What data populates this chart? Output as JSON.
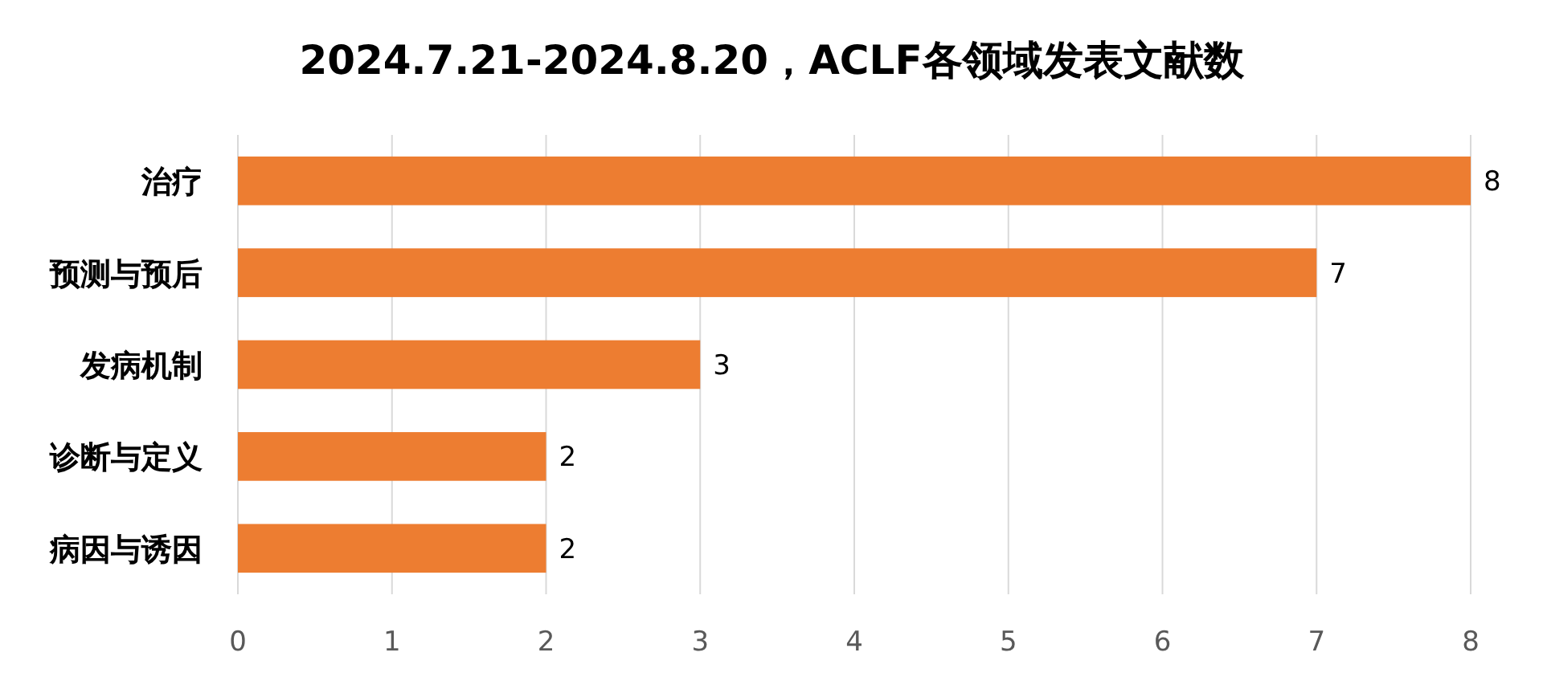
{
  "chart_data": {
    "type": "bar",
    "orientation": "horizontal",
    "title": "2024.7.21-2024.8.20，ACLF各领域发表文献数",
    "categories": [
      "治疗",
      "预测与预后",
      "发病机制",
      "诊断与定义",
      "病因与诱因"
    ],
    "values": [
      8,
      7,
      3,
      2,
      2
    ],
    "color": "#ed7d31",
    "xlim": [
      0,
      8
    ],
    "xticks": [
      0,
      1,
      2,
      3,
      4,
      5,
      6,
      7,
      8
    ],
    "grid": "x",
    "data_labels": true
  }
}
